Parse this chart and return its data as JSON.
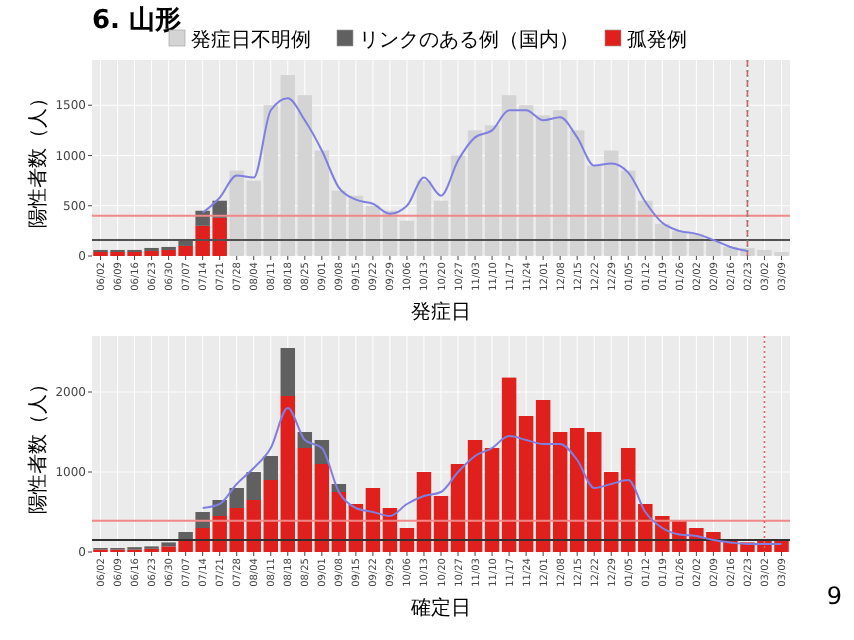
{
  "chart_data": [
    {
      "type": "bar",
      "title": "6. 山形",
      "xlabel": "発症日",
      "ylabel": "陽性者数（人）",
      "legend": "top",
      "grid": true,
      "stacked": true,
      "categories": [
        "06/02",
        "06/09",
        "06/16",
        "06/23",
        "06/30",
        "07/07",
        "07/14",
        "07/21",
        "07/28",
        "08/04",
        "08/11",
        "08/18",
        "08/25",
        "09/01",
        "09/08",
        "09/15",
        "09/22",
        "09/29",
        "10/06",
        "10/13",
        "10/20",
        "10/27",
        "11/03",
        "11/10",
        "11/17",
        "11/24",
        "12/01",
        "12/08",
        "12/15",
        "12/22",
        "12/29",
        "01/05",
        "01/12",
        "01/19",
        "01/26",
        "02/02",
        "02/09",
        "02/16",
        "02/23",
        "03/02",
        "03/09"
      ],
      "ylim": [
        0,
        1950
      ],
      "yticks": [
        0,
        500,
        1000,
        1500
      ],
      "series": [
        {
          "name": "孤発例",
          "color": "#e0201c",
          "values": [
            40,
            40,
            40,
            50,
            60,
            100,
            300,
            380,
            null,
            null,
            null,
            null,
            null,
            null,
            null,
            null,
            null,
            null,
            null,
            null,
            null,
            null,
            null,
            null,
            null,
            null,
            null,
            null,
            null,
            null,
            null,
            null,
            null,
            null,
            null,
            null,
            null,
            null,
            null,
            null,
            null
          ]
        },
        {
          "name": "リンクのある例（国内）",
          "color": "#606060",
          "values": [
            20,
            20,
            20,
            30,
            30,
            60,
            150,
            170,
            null,
            null,
            null,
            null,
            null,
            null,
            null,
            null,
            null,
            null,
            null,
            null,
            null,
            null,
            null,
            null,
            null,
            null,
            null,
            null,
            null,
            null,
            null,
            null,
            null,
            null,
            null,
            null,
            null,
            null,
            null,
            null,
            null
          ]
        },
        {
          "name": "発症日不明例",
          "color": "#d4d4d4",
          "values": [
            null,
            null,
            null,
            null,
            null,
            null,
            null,
            null,
            850,
            750,
            1500,
            1800,
            1600,
            1050,
            650,
            600,
            500,
            450,
            350,
            750,
            550,
            1000,
            1250,
            1300,
            1600,
            1500,
            1400,
            1450,
            1250,
            900,
            1050,
            850,
            550,
            320,
            250,
            220,
            150,
            90,
            80,
            60,
            40
          ]
        },
        {
          "type": "line",
          "color": "#7f7fe0",
          "values": [
            null,
            null,
            null,
            null,
            null,
            null,
            430,
            580,
            800,
            780,
            1450,
            1570,
            1350,
            1050,
            680,
            560,
            520,
            420,
            500,
            780,
            600,
            950,
            1180,
            1250,
            1450,
            1450,
            1350,
            1380,
            1180,
            900,
            920,
            830,
            540,
            330,
            250,
            220,
            160,
            90,
            50,
            null,
            null
          ]
        }
      ],
      "ref_lines": [
        {
          "axis": "y",
          "value": 400,
          "color": "#f08888",
          "line_style": "solid"
        },
        {
          "axis": "y",
          "value": 160,
          "color": "#505050",
          "line_style": "solid"
        },
        {
          "axis": "x",
          "value": "02/23",
          "color": "#e06060",
          "line_style": "dashed"
        },
        {
          "axis": "x",
          "value": "02/23",
          "color": "#808080",
          "line_style": "dotted"
        }
      ]
    },
    {
      "type": "bar",
      "xlabel": "確定日",
      "ylabel": "陽性者数（人）",
      "grid": true,
      "stacked": true,
      "categories": [
        "06/02",
        "06/09",
        "06/16",
        "06/23",
        "06/30",
        "07/07",
        "07/14",
        "07/21",
        "07/28",
        "08/04",
        "08/11",
        "08/18",
        "08/25",
        "09/01",
        "09/08",
        "09/15",
        "09/22",
        "09/29",
        "10/06",
        "10/13",
        "10/20",
        "10/27",
        "11/03",
        "11/10",
        "11/17",
        "11/24",
        "12/01",
        "12/08",
        "12/15",
        "12/22",
        "12/29",
        "01/05",
        "01/12",
        "01/19",
        "01/26",
        "02/02",
        "02/09",
        "02/16",
        "02/23",
        "03/02",
        "03/09"
      ],
      "ylim": [
        0,
        2700
      ],
      "yticks": [
        0,
        1000,
        2000
      ],
      "series": [
        {
          "color": "#e0201c",
          "values": [
            30,
            30,
            30,
            40,
            70,
            150,
            300,
            450,
            550,
            650,
            900,
            1950,
            1300,
            1100,
            750,
            600,
            800,
            550,
            300,
            1000,
            700,
            1100,
            1400,
            1300,
            2180,
            1700,
            1900,
            1500,
            1550,
            1500,
            1000,
            1300,
            600,
            450,
            400,
            300,
            250,
            150,
            120,
            150,
            150
          ]
        },
        {
          "color": "#606060",
          "values": [
            20,
            20,
            30,
            30,
            50,
            100,
            200,
            200,
            250,
            350,
            300,
            600,
            200,
            300,
            100,
            null,
            null,
            null,
            null,
            null,
            null,
            null,
            null,
            null,
            null,
            null,
            null,
            null,
            null,
            null,
            null,
            null,
            null,
            null,
            null,
            null,
            null,
            null,
            null,
            null,
            null
          ]
        },
        {
          "type": "line",
          "color": "#7f7fe0",
          "values": [
            null,
            null,
            null,
            null,
            null,
            null,
            550,
            600,
            850,
            1050,
            1300,
            1800,
            1400,
            1300,
            750,
            550,
            500,
            450,
            600,
            700,
            750,
            1000,
            1200,
            1300,
            1450,
            1400,
            1350,
            1350,
            1150,
            800,
            850,
            900,
            500,
            300,
            220,
            200,
            150,
            120,
            100,
            100,
            100
          ]
        }
      ],
      "ref_lines": [
        {
          "axis": "y",
          "value": 390,
          "color": "#f08888",
          "line_style": "solid"
        },
        {
          "axis": "y",
          "value": 150,
          "color": "#303030",
          "line_style": "solid"
        },
        {
          "axis": "x",
          "value": "03/02",
          "color": "#e06060",
          "line_style": "dotted"
        }
      ],
      "annotations": [
        "9"
      ]
    }
  ]
}
